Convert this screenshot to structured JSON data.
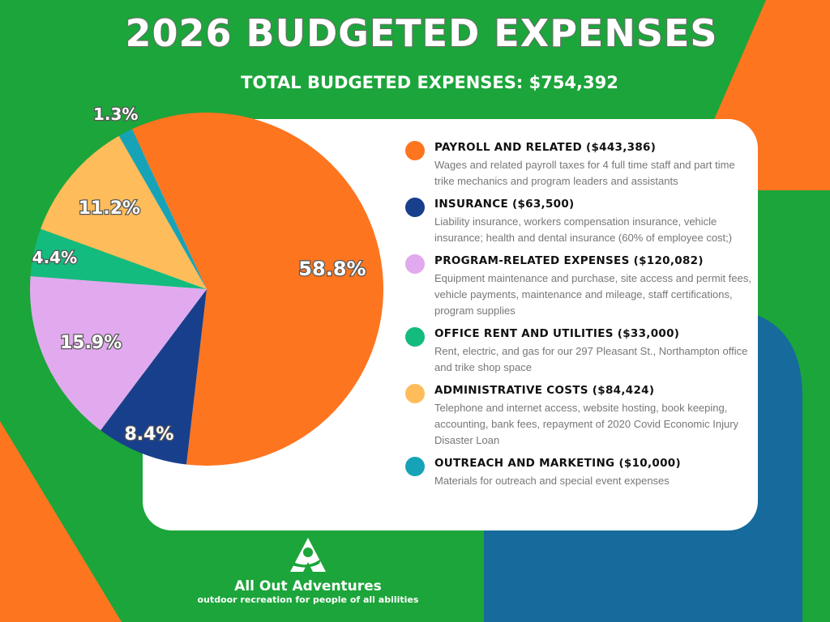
{
  "title": "2026 BUDGETED EXPENSES",
  "subtitle": "TOTAL BUDGETED EXPENSES:  $754,392",
  "colors": {
    "background": "#1ca53a",
    "accent_orange": "#fe7520",
    "accent_blue": "#166b9c"
  },
  "chart_data": {
    "type": "pie",
    "title": "2026 BUDGETED EXPENSES",
    "start_angle_deg": -25,
    "direction": "clockwise",
    "slices": [
      {
        "label": "PAYROLL AND RELATED ($443,386)",
        "value": 443386,
        "percent_label": "58.8%",
        "color": "#fe7520",
        "description": "Wages and related payroll taxes for 4 full time staff and part time trike mechanics and program leaders and assistants"
      },
      {
        "label": "INSURANCE ($63,500)",
        "value": 63500,
        "percent_label": "8.4%",
        "color": "#183f8c",
        "description": "Liability insurance, workers compensation insurance, vehicle insurance; health and dental insurance (60% of employee cost;)"
      },
      {
        "label": "PROGRAM-RELATED EXPENSES ($120,082)",
        "value": 120082,
        "percent_label": "15.9%",
        "color": "#e1aaee",
        "description": "Equipment maintenance and purchase, site access and permit fees, vehicle payments, maintenance and mileage, staff certifications, program supplies"
      },
      {
        "label": "OFFICE RENT AND UTILITIES ($33,000)",
        "value": 33000,
        "percent_label": "4.4%",
        "color": "#13bb7e",
        "description": "Rent, electric, and gas for our 297 Pleasant St., Northampton office and trike shop space"
      },
      {
        "label": "ADMINISTRATIVE COSTS ($84,424)",
        "value": 84424,
        "percent_label": "11.2%",
        "color": "#febc5b",
        "description": "Telephone and internet access, website hosting, book keeping, accounting, bank fees, repayment of 2020 Covid Economic Injury Disaster Loan"
      },
      {
        "label": "OUTREACH AND MARKETING ($10,000)",
        "value": 10000,
        "percent_label": "1.3%",
        "color": "#17a3b7",
        "description": "Materials for outreach and special event expenses"
      }
    ],
    "legend_position": "right"
  },
  "logo": {
    "name": "All Out Adventures",
    "tagline": "outdoor recreation for people of all abilities"
  }
}
